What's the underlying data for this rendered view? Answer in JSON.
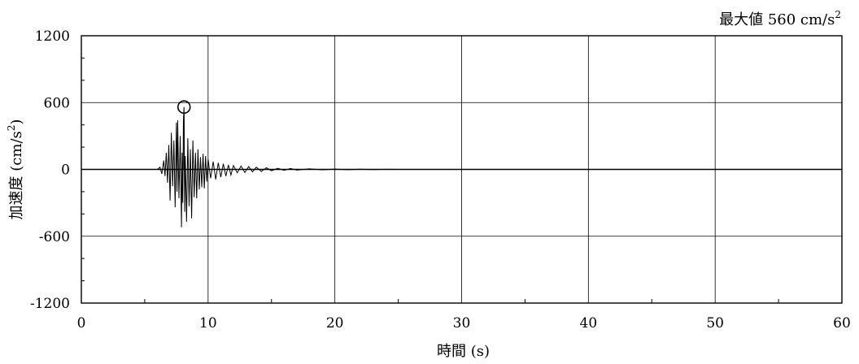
{
  "chart_data": {
    "type": "line",
    "title": "",
    "annotation": {
      "prefix": "最大値",
      "value": "560",
      "unit": "cm/s",
      "unit_exponent": "2",
      "peak": {
        "x": 8.1,
        "y": 560
      }
    },
    "xlabel": "時間 (s)",
    "ylabel": {
      "text": "加速度 (cm/s",
      "exponent": "2",
      "suffix": ")"
    },
    "xlim": [
      0,
      60
    ],
    "ylim": [
      -1200,
      1200
    ],
    "xticks": [
      0,
      10,
      20,
      30,
      40,
      50,
      60
    ],
    "xtick_labels": [
      "0",
      "10",
      "20",
      "30",
      "40",
      "50",
      "60"
    ],
    "yticks": [
      1200,
      600,
      0,
      -600,
      -1200
    ],
    "ytick_labels": [
      "1200",
      "600",
      "0",
      "-600",
      "-1200"
    ],
    "grid": true,
    "series": [
      {
        "color": "#000000",
        "x": [
          0,
          6.0,
          6.2,
          6.35,
          6.5,
          6.6,
          6.7,
          6.8,
          6.9,
          7.0,
          7.1,
          7.2,
          7.3,
          7.4,
          7.5,
          7.55,
          7.6,
          7.7,
          7.8,
          7.9,
          7.95,
          8.0,
          8.05,
          8.1,
          8.15,
          8.2,
          8.3,
          8.4,
          8.5,
          8.6,
          8.7,
          8.8,
          8.9,
          9.0,
          9.1,
          9.2,
          9.3,
          9.4,
          9.5,
          9.6,
          9.7,
          9.8,
          9.9,
          10.0,
          10.2,
          10.4,
          10.6,
          10.8,
          11.0,
          11.2,
          11.4,
          11.6,
          11.8,
          12.0,
          12.3,
          12.6,
          12.9,
          13.2,
          13.5,
          13.8,
          14.2,
          14.6,
          15.0,
          15.5,
          16.0,
          16.5,
          17.0,
          18.0,
          19.0,
          20.0,
          21.0,
          22.0,
          23.0,
          24.0,
          25.0,
          60
        ],
        "y": [
          0,
          0,
          20,
          -40,
          80,
          -60,
          150,
          -120,
          220,
          -280,
          330,
          -150,
          260,
          -340,
          420,
          -200,
          440,
          -260,
          300,
          -520,
          150,
          -300,
          430,
          560,
          -380,
          120,
          -470,
          280,
          -330,
          180,
          -440,
          260,
          -250,
          150,
          -260,
          180,
          -180,
          110,
          -160,
          140,
          -170,
          120,
          -110,
          90,
          -80,
          70,
          -90,
          60,
          -70,
          50,
          -60,
          40,
          -50,
          35,
          -30,
          30,
          -28,
          25,
          -22,
          20,
          -18,
          15,
          -12,
          10,
          -8,
          8,
          -6,
          5,
          -4,
          3,
          -3,
          2,
          -2,
          1,
          0,
          0
        ]
      }
    ]
  }
}
